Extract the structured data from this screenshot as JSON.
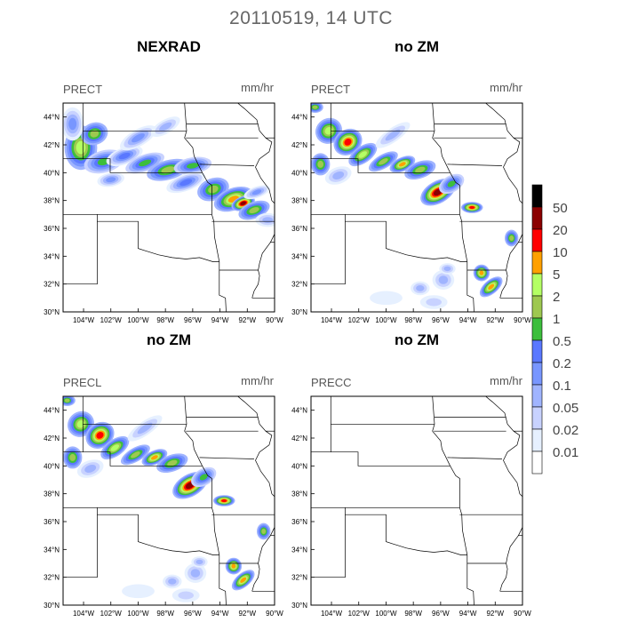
{
  "title": "20110519, 14 UTC",
  "panels": [
    {
      "id": "p1",
      "header": "NEXRAD",
      "var_label": "PRECT",
      "units": "mm/hr",
      "empty": false
    },
    {
      "id": "p2",
      "header": "no ZM",
      "var_label": "PRECT",
      "units": "mm/hr",
      "empty": false
    },
    {
      "id": "p3",
      "header": "no ZM",
      "var_label": "PRECL",
      "units": "mm/hr",
      "empty": false
    },
    {
      "id": "p4",
      "header": "no ZM",
      "var_label": "PRECC",
      "units": "mm/hr",
      "empty": true
    }
  ],
  "map": {
    "lon_range": [
      -105.5,
      -90
    ],
    "lat_range": [
      30,
      45
    ],
    "lon_ticks": [
      "104°W",
      "102°W",
      "100°W",
      "98°W",
      "96°W",
      "94°W",
      "92°W",
      "90°W"
    ],
    "lat_ticks": [
      "44°N",
      "42°N",
      "40°N",
      "38°N",
      "36°N",
      "34°N",
      "32°N",
      "30°N"
    ]
  },
  "colorbar": {
    "labels": [
      "50",
      "20",
      "10",
      "5",
      "2",
      "1",
      "0.5",
      "0.2",
      "0.1",
      "0.05",
      "0.02",
      "0.01"
    ],
    "colors": [
      "#000000",
      "#8b0000",
      "#ff0000",
      "#ffa000",
      "#b4ff64",
      "#9ec850",
      "#3cbe3c",
      "#5a78ff",
      "#7896ff",
      "#a0b4ff",
      "#c8d2ff",
      "#e6f0ff",
      "#ffffff"
    ]
  }
}
